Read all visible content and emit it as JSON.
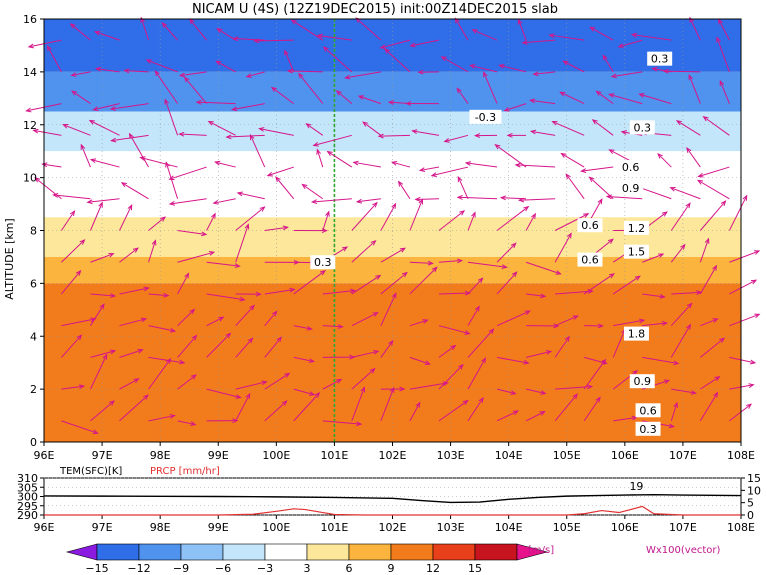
{
  "chart_data": [
    {
      "type": "heatmap",
      "title": "NICAM U (4S) (12Z19DEC2015) init:00Z14DEC2015 slab",
      "xlabel": "",
      "ylabel": "ALTITUDE [km]",
      "xlim": [
        96,
        108
      ],
      "ylim": [
        0,
        16
      ],
      "x_ticks": [
        96,
        97,
        98,
        99,
        100,
        101,
        102,
        103,
        104,
        105,
        106,
        107,
        108
      ],
      "x_tick_labels": [
        "96E",
        "97E",
        "98E",
        "99E",
        "100E",
        "101E",
        "102E",
        "103E",
        "104E",
        "105E",
        "106E",
        "107E",
        "108E"
      ],
      "y_ticks": [
        0,
        2,
        4,
        6,
        8,
        10,
        12,
        14,
        16
      ],
      "y_tick_labels": [
        "0",
        "2",
        "4",
        "6",
        "8",
        "10",
        "12",
        "14",
        "16"
      ],
      "grid": true,
      "marker_line_lon": 101,
      "colorbar": {
        "unit": "[m/s]",
        "levels": [
          -15,
          -12,
          -9,
          -6,
          -3,
          3,
          6,
          9,
          12,
          15
        ],
        "level_labels": [
          "−15",
          "−12",
          "−9",
          "−6",
          "−3",
          "3",
          "6",
          "9",
          "12",
          "15"
        ],
        "colors": [
          "#8a1ae0",
          "#2f6ee8",
          "#4f93ee",
          "#8ec1f5",
          "#c4e6fa",
          "#ffffff",
          "#fde79a",
          "#fbb43d",
          "#f27b1b",
          "#e8401a",
          "#c8141e",
          "#e6138c"
        ]
      },
      "vector_label": "Wx100(vector)",
      "bands": [
        {
          "altitude_range": [
            14,
            16
          ],
          "u": -15
        },
        {
          "altitude_range": [
            12.5,
            14
          ],
          "u": -10
        },
        {
          "altitude_range": [
            11,
            12.5
          ],
          "u": -6
        },
        {
          "altitude_range": [
            9.5,
            11
          ],
          "u": -3
        },
        {
          "altitude_range": [
            8.5,
            9.5
          ],
          "u": 0
        },
        {
          "altitude_range": [
            7,
            8.5
          ],
          "u": 5
        },
        {
          "altitude_range": [
            6,
            7
          ],
          "u": 8
        },
        {
          "altitude_range": [
            0,
            6
          ],
          "u": 10
        }
      ],
      "contour_labels": [
        {
          "x": 103.6,
          "y": 12.3,
          "text": "-0.3"
        },
        {
          "x": 106.6,
          "y": 14.5,
          "text": "0.3"
        },
        {
          "x": 100.8,
          "y": 6.8,
          "text": "0.3"
        },
        {
          "x": 106.3,
          "y": 11.9,
          "text": "0.3"
        },
        {
          "x": 106.1,
          "y": 10.4,
          "text": "0.6"
        },
        {
          "x": 106.1,
          "y": 9.6,
          "text": "0.9"
        },
        {
          "x": 105.4,
          "y": 8.2,
          "text": "0.6"
        },
        {
          "x": 106.2,
          "y": 8.1,
          "text": "1.2"
        },
        {
          "x": 105.4,
          "y": 6.9,
          "text": "0.6"
        },
        {
          "x": 106.2,
          "y": 7.2,
          "text": "1.5"
        },
        {
          "x": 106.2,
          "y": 4.1,
          "text": "1.8"
        },
        {
          "x": 106.3,
          "y": 2.3,
          "text": "0.9"
        },
        {
          "x": 106.4,
          "y": 1.2,
          "text": "0.6"
        },
        {
          "x": 106.4,
          "y": 0.5,
          "text": "0.3"
        }
      ]
    },
    {
      "type": "line",
      "x_ticks": [
        96,
        97,
        98,
        99,
        100,
        101,
        102,
        103,
        104,
        105,
        106,
        107,
        108
      ],
      "x_tick_labels": [
        "96E",
        "97E",
        "98E",
        "99E",
        "100E",
        "101E",
        "102E",
        "103E",
        "104E",
        "105E",
        "106E",
        "107E",
        "108E"
      ],
      "xlim": [
        96,
        108
      ],
      "left_axis": {
        "label": "TEM(SFC)[K]",
        "ylim": [
          290,
          310
        ],
        "ticks": [
          "290",
          "295",
          "300",
          "305",
          "310"
        ]
      },
      "right_axis": {
        "label": "PRCP [mm/hr]",
        "ylim": [
          0,
          15
        ],
        "ticks": [
          "0",
          "5",
          "10",
          "15"
        ]
      },
      "annotation": "19",
      "series": [
        {
          "name": "TEM(SFC)[K]",
          "color": "#000000",
          "x": [
            96,
            97,
            98,
            99,
            100,
            101,
            102,
            102.5,
            103,
            103.5,
            104,
            104.5,
            105,
            105.5,
            106,
            106.5,
            107,
            108
          ],
          "y": [
            300.3,
            300.2,
            300.1,
            300,
            299.8,
            299.5,
            299,
            297.8,
            296.8,
            297,
            298.5,
            299.5,
            300.2,
            300.5,
            300.8,
            301,
            300.8,
            300.5
          ]
        },
        {
          "name": "PRCP [mm/hr]",
          "color": "#e03030",
          "x": [
            96,
            99,
            99.6,
            100,
            100.3,
            100.5,
            100.8,
            101,
            101.5,
            105,
            105.3,
            105.6,
            105.9,
            106.1,
            106.3,
            106.5,
            107,
            108
          ],
          "y": [
            0,
            0,
            0.3,
            1.5,
            2.5,
            2.2,
            1,
            0.2,
            0,
            0,
            0.5,
            1.8,
            1,
            2.2,
            3.5,
            0.5,
            0,
            0
          ]
        }
      ]
    }
  ]
}
